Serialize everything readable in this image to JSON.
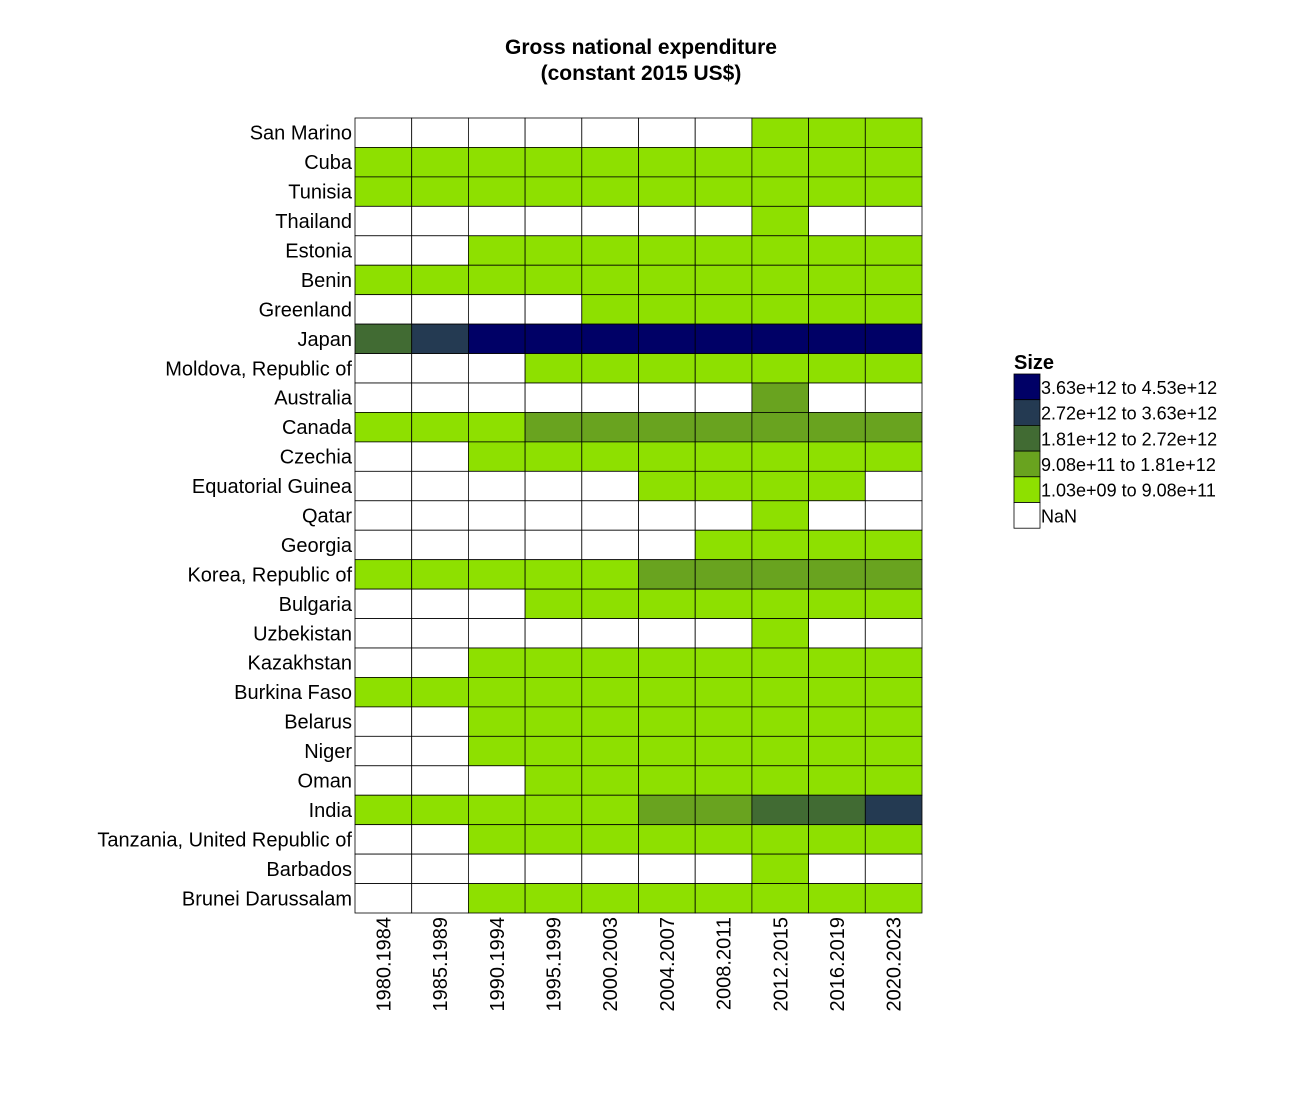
{
  "chart_data": {
    "type": "heatmap",
    "title": [
      "Gross national expenditure",
      "(constant 2015 US$)"
    ],
    "categories": [
      "1980.1984",
      "1985.1989",
      "1990.1994",
      "1995.1999",
      "2000.2003",
      "2004.2007",
      "2008.2011",
      "2012.2015",
      "2016.2019",
      "2020.2023"
    ],
    "rows": [
      "San Marino",
      "Cuba",
      "Tunisia",
      "Thailand",
      "Estonia",
      "Benin",
      "Greenland",
      "Japan",
      "Moldova, Republic of",
      "Australia",
      "Canada",
      "Czechia",
      "Equatorial Guinea",
      "Qatar",
      "Georgia",
      "Korea, Republic of",
      "Bulgaria",
      "Uzbekistan",
      "Kazakhstan",
      "Burkina Faso",
      "Belarus",
      "Niger",
      "Oman",
      "India",
      "Tanzania, United Republic of",
      "Barbados",
      "Brunei Darussalam"
    ],
    "legend": {
      "title": "Size",
      "position": "right",
      "bins": [
        {
          "label": "3.63e+12 to 4.53e+12",
          "color": "#000066"
        },
        {
          "label": "2.72e+12 to 3.63e+12",
          "color": "#243A52"
        },
        {
          "label": "1.81e+12 to 2.72e+12",
          "color": "#416B33"
        },
        {
          "label": "9.08e+11 to 1.81e+12",
          "color": "#69A31F"
        },
        {
          "label": "1.03e+09 to 9.08e+11",
          "color": "#8EE000"
        },
        {
          "label": "NaN",
          "color": "#FFFFFF"
        }
      ]
    },
    "cell_bins_note": "bin index per cell: 0 = 3.63e+12 to 4.53e+12 ... 4 = 1.03e+09 to 9.08e+11, 5 = NaN",
    "cells": [
      [
        5,
        5,
        5,
        5,
        5,
        5,
        5,
        4,
        4,
        4
      ],
      [
        4,
        4,
        4,
        4,
        4,
        4,
        4,
        4,
        4,
        4
      ],
      [
        4,
        4,
        4,
        4,
        4,
        4,
        4,
        4,
        4,
        4
      ],
      [
        5,
        5,
        5,
        5,
        5,
        5,
        5,
        4,
        5,
        5
      ],
      [
        5,
        5,
        4,
        4,
        4,
        4,
        4,
        4,
        4,
        4
      ],
      [
        4,
        4,
        4,
        4,
        4,
        4,
        4,
        4,
        4,
        4
      ],
      [
        5,
        5,
        5,
        5,
        4,
        4,
        4,
        4,
        4,
        4
      ],
      [
        2,
        1,
        0,
        0,
        0,
        0,
        0,
        0,
        0,
        0
      ],
      [
        5,
        5,
        5,
        4,
        4,
        4,
        4,
        4,
        4,
        4
      ],
      [
        5,
        5,
        5,
        5,
        5,
        5,
        5,
        3,
        5,
        5
      ],
      [
        4,
        4,
        4,
        3,
        3,
        3,
        3,
        3,
        3,
        3
      ],
      [
        5,
        5,
        4,
        4,
        4,
        4,
        4,
        4,
        4,
        4
      ],
      [
        5,
        5,
        5,
        5,
        5,
        4,
        4,
        4,
        4,
        5
      ],
      [
        5,
        5,
        5,
        5,
        5,
        5,
        5,
        4,
        5,
        5
      ],
      [
        5,
        5,
        5,
        5,
        5,
        5,
        4,
        4,
        4,
        4
      ],
      [
        4,
        4,
        4,
        4,
        4,
        3,
        3,
        3,
        3,
        3
      ],
      [
        5,
        5,
        5,
        4,
        4,
        4,
        4,
        4,
        4,
        4
      ],
      [
        5,
        5,
        5,
        5,
        5,
        5,
        5,
        4,
        5,
        5
      ],
      [
        5,
        5,
        4,
        4,
        4,
        4,
        4,
        4,
        4,
        4
      ],
      [
        4,
        4,
        4,
        4,
        4,
        4,
        4,
        4,
        4,
        4
      ],
      [
        5,
        5,
        4,
        4,
        4,
        4,
        4,
        4,
        4,
        4
      ],
      [
        5,
        5,
        4,
        4,
        4,
        4,
        4,
        4,
        4,
        4
      ],
      [
        5,
        5,
        5,
        4,
        4,
        4,
        4,
        4,
        4,
        4
      ],
      [
        4,
        4,
        4,
        4,
        4,
        3,
        3,
        2,
        2,
        1
      ],
      [
        5,
        5,
        4,
        4,
        4,
        4,
        4,
        4,
        4,
        4
      ],
      [
        5,
        5,
        5,
        5,
        5,
        5,
        5,
        4,
        5,
        5
      ],
      [
        5,
        5,
        4,
        4,
        4,
        4,
        4,
        4,
        4,
        4
      ]
    ],
    "grid": true
  }
}
